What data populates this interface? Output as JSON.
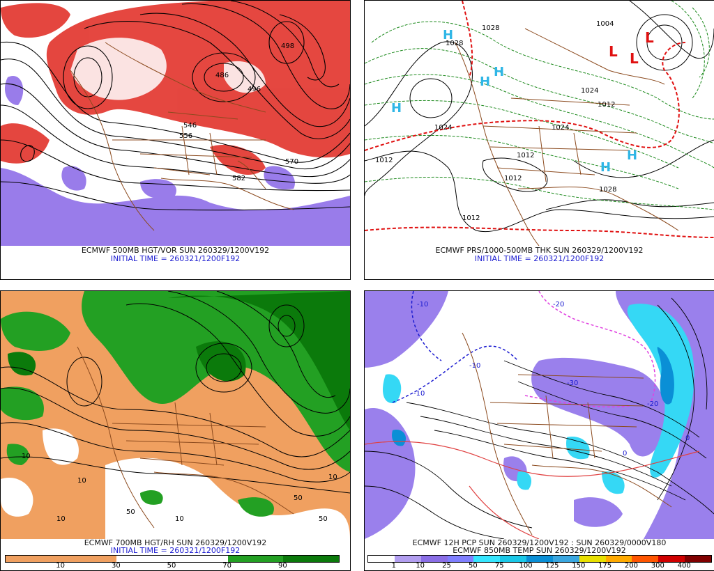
{
  "panels": {
    "p1": {
      "caption1": "ECMWF 500MB HGT/VOR SUN 260329/1200V192",
      "caption2": "INITIAL TIME = 260321/1200F192",
      "contours": [
        "546",
        "556",
        "570",
        "582",
        "486",
        "496",
        "498"
      ]
    },
    "p2": {
      "caption1": "ECMWF PRS/1000-500MB THK SUN 260329/1200V192",
      "caption2": "INITIAL TIME = 260321/1200F192",
      "contours": [
        "1028",
        "1012",
        "1012",
        "1012",
        "1024",
        "1012",
        "1028",
        "1004",
        "1024",
        "1012",
        "1024",
        "1028"
      ],
      "highs": [
        "H",
        "H",
        "H",
        "H",
        "H",
        "H"
      ],
      "lows": [
        "L",
        "L",
        "L"
      ]
    },
    "p3": {
      "caption1": "ECMWF 700MB HGT/RH SUN 260329/1200V192",
      "caption2": "INITIAL TIME = 260321/1200F192",
      "contours": [
        "10",
        "10",
        "50",
        "50",
        "10",
        "50",
        "10",
        "10"
      ]
    },
    "p4": {
      "caption1": "ECMWF 12H PCP SUN 260329/1200V192 : SUN 260329/0000V180",
      "caption2": "ECMWF 850MB TEMP SUN 260329/1200V192",
      "contours": [
        "-10",
        "-10",
        "-10",
        "-30",
        "0",
        "0",
        "-20",
        "-20"
      ]
    }
  },
  "legend_rh": {
    "labels": [
      "10",
      "30",
      "50",
      "70",
      "90"
    ],
    "colors": [
      "#f0a060",
      "#f0a060",
      "#f0a060",
      "#f0a060",
      "#ffffff",
      "#ffffff",
      "#ffffff",
      "#ffffff",
      "#23a023",
      "#23a023",
      "#0b7a0b",
      "#0b7a0b"
    ]
  },
  "legend_pcp": {
    "labels": [
      "1",
      "10",
      "25",
      "50",
      "75",
      "100",
      "125",
      "150",
      "175",
      "200",
      "300",
      "400"
    ],
    "colors": [
      "#ffffff",
      "#b29ef0",
      "#8a6ee6",
      "#7f7fff",
      "#35e6ff",
      "#1ac8e8",
      "#0a8fd6",
      "#3aa7e0",
      "#e8e000",
      "#ffaa00",
      "#ff5500",
      "#d00000",
      "#800000"
    ]
  }
}
